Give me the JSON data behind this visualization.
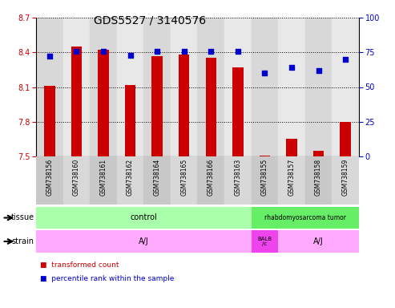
{
  "title": "GDS5527 / 3140576",
  "samples": [
    "GSM738156",
    "GSM738160",
    "GSM738161",
    "GSM738162",
    "GSM738164",
    "GSM738165",
    "GSM738166",
    "GSM738163",
    "GSM738155",
    "GSM738157",
    "GSM738158",
    "GSM738159"
  ],
  "bar_values": [
    8.11,
    8.45,
    8.42,
    8.12,
    8.37,
    8.38,
    8.35,
    8.27,
    7.51,
    7.65,
    7.55,
    7.8
  ],
  "scatter_values": [
    72,
    76,
    76,
    73,
    76,
    76,
    76,
    76,
    60,
    64,
    62,
    70
  ],
  "ylim_left": [
    7.5,
    8.7
  ],
  "ylim_right": [
    0,
    100
  ],
  "yticks_left": [
    7.5,
    7.8,
    8.1,
    8.4,
    8.7
  ],
  "yticks_right": [
    0,
    25,
    50,
    75,
    100
  ],
  "bar_color": "#cc0000",
  "scatter_color": "#0000cc",
  "bar_bottom": 7.5,
  "col_bg_even": "#d8d8d8",
  "col_bg_odd": "#e8e8e8",
  "tissue_control_color": "#aaffaa",
  "tissue_tumor_color": "#66dd66",
  "strain_aj_color": "#ffaaff",
  "strain_balb_color": "#ee44ee",
  "grid_color": "black",
  "title_fontsize": 10,
  "tick_fontsize": 7,
  "label_fontsize": 7
}
